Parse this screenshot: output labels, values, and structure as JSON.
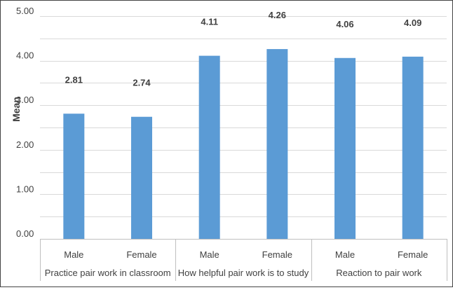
{
  "chart_data": {
    "type": "bar",
    "ylabel": "Mean",
    "xlabel": "",
    "title": "",
    "ylim": [
      0,
      5
    ],
    "yticks": [
      "0.00",
      "1.00",
      "2.00",
      "3.00",
      "4.00",
      "5.00"
    ],
    "grid": true,
    "colors": {
      "bar": "#5b9bd5",
      "grid": "#d9d9d9",
      "text": "#404040"
    },
    "groups": [
      {
        "name": "Practice pair work in classroom",
        "bars": [
          {
            "category": "Male",
            "value": 2.81,
            "label": "2.81"
          },
          {
            "category": "Female",
            "value": 2.74,
            "label": "2.74"
          }
        ]
      },
      {
        "name": "How helpful pair work is to study",
        "bars": [
          {
            "category": "Male",
            "value": 4.11,
            "label": "4.11"
          },
          {
            "category": "Female",
            "value": 4.26,
            "label": "4.26"
          }
        ]
      },
      {
        "name": "Reaction to pair work",
        "bars": [
          {
            "category": "Male",
            "value": 4.06,
            "label": "4.06"
          },
          {
            "category": "Female",
            "value": 4.09,
            "label": "4.09"
          }
        ]
      }
    ]
  }
}
